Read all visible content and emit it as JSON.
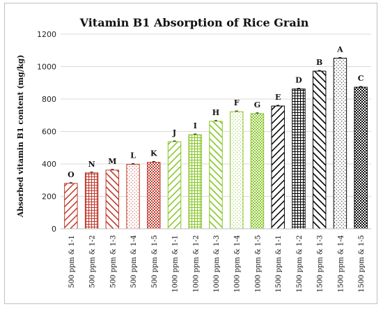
{
  "chart_data": {
    "type": "bar",
    "title": "Vitamin B1 Absorption of Rice Grain",
    "xlabel": "",
    "ylabel": "Absorbed vitamin B1 content (mg/kg)",
    "ylim": [
      0,
      1200
    ],
    "yticks": [
      0,
      200,
      400,
      600,
      800,
      1000,
      1200
    ],
    "grid": true,
    "categories": [
      "500 ppm & 1-1",
      "500 ppm & 1-2",
      "500 ppm & 1-3",
      "500 ppm & 1-4",
      "500 ppm & 1-5",
      "1000 ppm & 1-1",
      "1000 ppm & 1-2",
      "1000 ppm & 1-3",
      "1000 ppm & 1-4",
      "1000 ppm & 1-5",
      "1500 ppm & 1-1",
      "1500 ppm & 1-2",
      "1500 ppm & 1-3",
      "1500 ppm & 1-4",
      "1500 ppm & 1-5"
    ],
    "values": [
      280,
      345,
      362,
      397,
      410,
      537,
      580,
      663,
      722,
      710,
      757,
      862,
      972,
      1052,
      873
    ],
    "labels": [
      "O",
      "N",
      "M",
      "L",
      "K",
      "J",
      "I",
      "H",
      "F",
      "G",
      "E",
      "D",
      "B",
      "A",
      "C"
    ],
    "group_colors": [
      "#c0392b",
      "#86c523",
      "#000000"
    ],
    "patterns": [
      "diag-right",
      "grid",
      "diag-left",
      "dots",
      "checker"
    ]
  }
}
